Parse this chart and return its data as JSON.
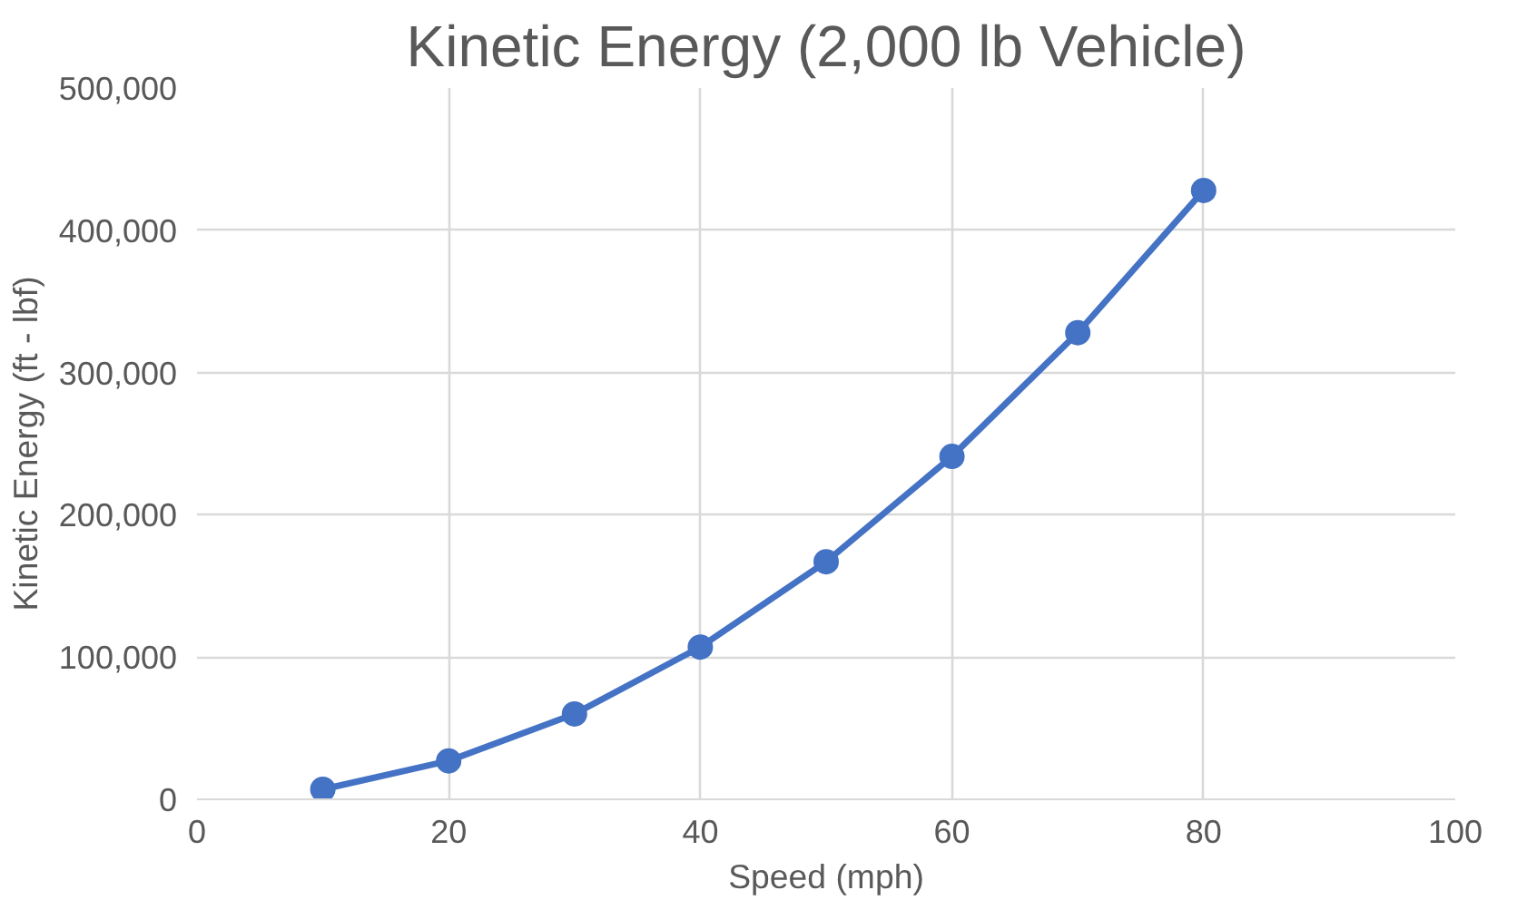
{
  "chart_data": {
    "type": "line",
    "title": "Kinetic Energy (2,000 lb Vehicle)",
    "xlabel": "Speed (mph)",
    "ylabel": "Kinetic Energy (ft - lbf)",
    "x": [
      10,
      20,
      30,
      40,
      50,
      60,
      70,
      80
    ],
    "series": [
      {
        "color": "#4472c4",
        "values": [
          7000,
          27000,
          60000,
          107000,
          167000,
          241000,
          328000,
          428000
        ]
      }
    ],
    "xlim": [
      0,
      100
    ],
    "xticks": [
      0,
      20,
      40,
      60,
      80,
      100
    ],
    "ylim": [
      0,
      500000
    ],
    "yticks": [
      {
        "value": 0,
        "label": "0"
      },
      {
        "value": 100000,
        "label": "100,000"
      },
      {
        "value": 200000,
        "label": "200,000"
      },
      {
        "value": 300000,
        "label": "300,000"
      },
      {
        "value": 400000,
        "label": "400,000"
      },
      {
        "value": 500000,
        "label": "500,000"
      }
    ],
    "grid": true,
    "marker": "circle",
    "line_style": "solid"
  }
}
